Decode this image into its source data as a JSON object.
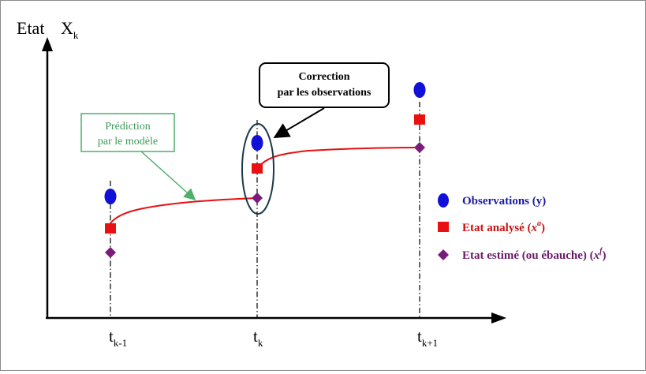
{
  "axes": {
    "y_label": "Etat",
    "y_var": "X",
    "y_var_sub": "k",
    "t_prev": "t",
    "t_prev_sub": "k-1",
    "t_cur": "t",
    "t_cur_sub": "k",
    "t_next": "t",
    "t_next_sub": "k+1"
  },
  "annotations": {
    "correction_line1": "Correction",
    "correction_line2": "par les observations",
    "prediction_line1": "Prédiction",
    "prediction_line2": "par le modèle"
  },
  "legend": {
    "observations": "Observations (y)",
    "analyse_prefix": "Etat analysé (",
    "analyse_var": "x",
    "analyse_sup": "a",
    "analyse_suffix": ")",
    "estime_prefix": "Etat estimé (ou ébauche) (",
    "estime_var": "x",
    "estime_sup": "f",
    "estime_suffix": ")"
  },
  "colors": {
    "observation": "#1010d8",
    "analysis": "#e81010",
    "forecast": "#7a1a7a",
    "trajectory": "#e81010",
    "prediction_box": "#4caf6a",
    "prediction_text": "#3e9a5a",
    "legend_text_obs": "#1a1aa0",
    "legend_text_analysis": "#c81010",
    "legend_text_forecast": "#6a1a6a"
  }
}
